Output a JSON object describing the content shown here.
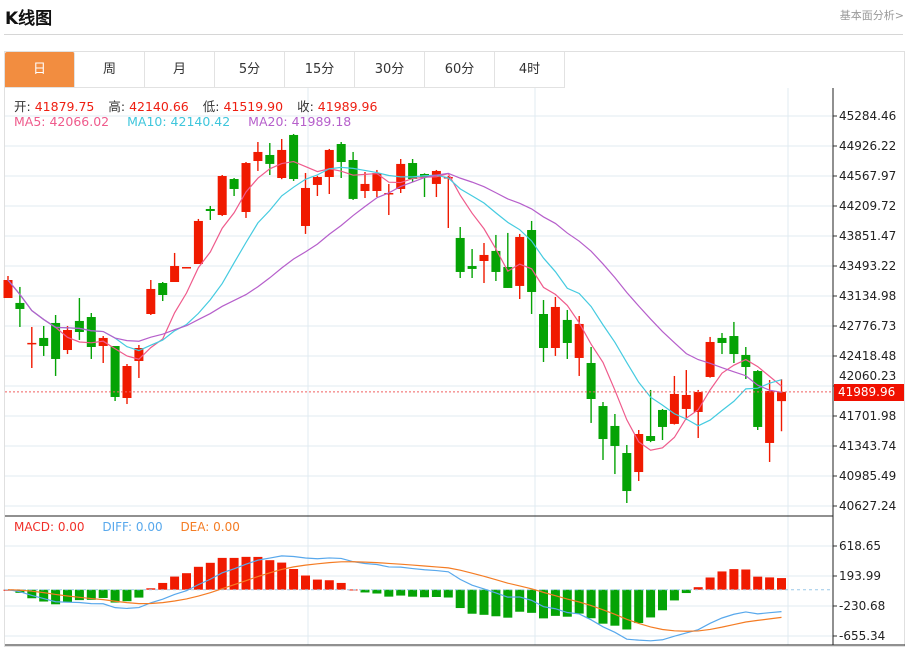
{
  "header": {
    "title": "K线图",
    "link": "基本面分析>"
  },
  "tabs": [
    {
      "label": "日",
      "active": true
    },
    {
      "label": "周"
    },
    {
      "label": "月"
    },
    {
      "label": "5分"
    },
    {
      "label": "15分"
    },
    {
      "label": "30分"
    },
    {
      "label": "60分"
    },
    {
      "label": "4时"
    }
  ],
  "info": {
    "open_label": "开:",
    "open": "41879.75",
    "high_label": "高:",
    "high": "42140.66",
    "low_label": "低:",
    "low": "41519.90",
    "close_label": "收:",
    "close": "41989.96"
  },
  "ma": {
    "ma5": "MA5: 42066.02",
    "ma10": "MA10: 42140.42",
    "ma20": "MA20: 41989.18"
  },
  "macd_legend": {
    "macd": "MACD: 0.00",
    "diff": "DIFF: 0.00",
    "dea": "DEA: 0.00"
  },
  "colors": {
    "up": "#f01a00",
    "down": "#05a305",
    "ma5": "#ef5b8c",
    "ma10": "#45cbe0",
    "ma20": "#b65fcb",
    "dif": "#58a8ec",
    "dea": "#f47c24",
    "accent": "#f28d40"
  },
  "chart_data": {
    "type": "candlestick",
    "price_axis": {
      "ticks": [
        "45284.46",
        "44926.22",
        "44567.97",
        "44209.72",
        "43851.47",
        "43493.22",
        "43134.98",
        "42776.73",
        "42418.48",
        "42060.23",
        "41701.98",
        "41343.74",
        "40985.49",
        "40627.24"
      ],
      "range": [
        40627.24,
        45284.46
      ]
    },
    "macd_axis": {
      "ticks": [
        "618.65",
        "193.99",
        "-230.68",
        "-655.34"
      ],
      "range": [
        -655.34,
        618.65
      ]
    },
    "last_price": "41989.96",
    "ohlc": [
      [
        43111,
        43374,
        43111,
        43326
      ],
      [
        43052,
        43243,
        42765,
        42980
      ],
      [
        42562,
        42765,
        42275,
        42575
      ],
      [
        42634,
        42777,
        42419,
        42538
      ],
      [
        42813,
        42908,
        42180,
        42383
      ],
      [
        42490,
        42777,
        42442,
        42729
      ],
      [
        42837,
        43111,
        42610,
        42705
      ],
      [
        42884,
        42932,
        42383,
        42526
      ],
      [
        42538,
        42657,
        42335,
        42634
      ],
      [
        42538,
        42538,
        41881,
        41929
      ],
      [
        41917,
        42323,
        41845,
        42299
      ],
      [
        42359,
        42550,
        42156,
        42514
      ],
      [
        42920,
        43326,
        42908,
        43219
      ],
      [
        43290,
        43302,
        43075,
        43147
      ],
      [
        43302,
        43649,
        43302,
        43493
      ],
      [
        43470,
        43481,
        43470,
        43481
      ],
      [
        43517,
        44055,
        43517,
        44031
      ],
      [
        44174,
        44210,
        44043,
        44150
      ],
      [
        44102,
        44580,
        44090,
        44568
      ],
      [
        44532,
        44544,
        44329,
        44413
      ],
      [
        44138,
        44735,
        44067,
        44723
      ],
      [
        44747,
        44974,
        44628,
        44855
      ],
      [
        44819,
        44962,
        44580,
        44712
      ],
      [
        44544,
        45010,
        44530,
        44879
      ],
      [
        45058,
        45070,
        44509,
        44532
      ],
      [
        43971,
        44604,
        43876,
        44425
      ],
      [
        44461,
        44570,
        44329,
        44556
      ],
      [
        44556,
        44891,
        44353,
        44879
      ],
      [
        44950,
        44974,
        44544,
        44735
      ],
      [
        44759,
        44855,
        44282,
        44294
      ],
      [
        44389,
        44616,
        44305,
        44473
      ],
      [
        44389,
        44640,
        44317,
        44604
      ],
      [
        44360,
        44473,
        44102,
        44365
      ],
      [
        44413,
        44771,
        44365,
        44712
      ],
      [
        44723,
        44771,
        44497,
        44532
      ],
      [
        44592,
        44600,
        44317,
        44556
      ],
      [
        44473,
        44640,
        44317,
        44628
      ],
      [
        44550,
        44570,
        43947,
        44556
      ],
      [
        43828,
        43959,
        43350,
        43422
      ],
      [
        43493,
        43696,
        43350,
        43458
      ],
      [
        43553,
        43768,
        43290,
        43625
      ],
      [
        43673,
        43864,
        43314,
        43422
      ],
      [
        43481,
        43888,
        43231,
        43231
      ],
      [
        43255,
        43876,
        43099,
        43840
      ],
      [
        43923,
        44031,
        42920,
        43183
      ],
      [
        42920,
        43087,
        42347,
        42514
      ],
      [
        42514,
        43123,
        42419,
        43004
      ],
      [
        42849,
        42968,
        42383,
        42574
      ],
      [
        42395,
        42896,
        42180,
        42801
      ],
      [
        42335,
        42526,
        41619,
        41905
      ],
      [
        41821,
        41869,
        41177,
        41427
      ],
      [
        41583,
        41726,
        41009,
        41344
      ],
      [
        41260,
        41356,
        40663,
        40806
      ],
      [
        41033,
        41535,
        40926,
        41487
      ],
      [
        41463,
        42013,
        41390,
        41404
      ],
      [
        41774,
        41786,
        41415,
        41571
      ],
      [
        41607,
        42180,
        41600,
        41965
      ],
      [
        41786,
        42251,
        41654,
        41953
      ],
      [
        41750,
        42013,
        41439,
        41989
      ],
      [
        42168,
        42646,
        42160,
        42586
      ],
      [
        42634,
        42693,
        42442,
        42574
      ],
      [
        42657,
        42825,
        42335,
        42442
      ],
      [
        42431,
        42526,
        42144,
        42287
      ],
      [
        42239,
        42250,
        41535,
        41571
      ],
      [
        41380,
        42132,
        41153,
        42001
      ],
      [
        41879.75,
        42140.66,
        41519.9,
        41989.96
      ]
    ]
  }
}
